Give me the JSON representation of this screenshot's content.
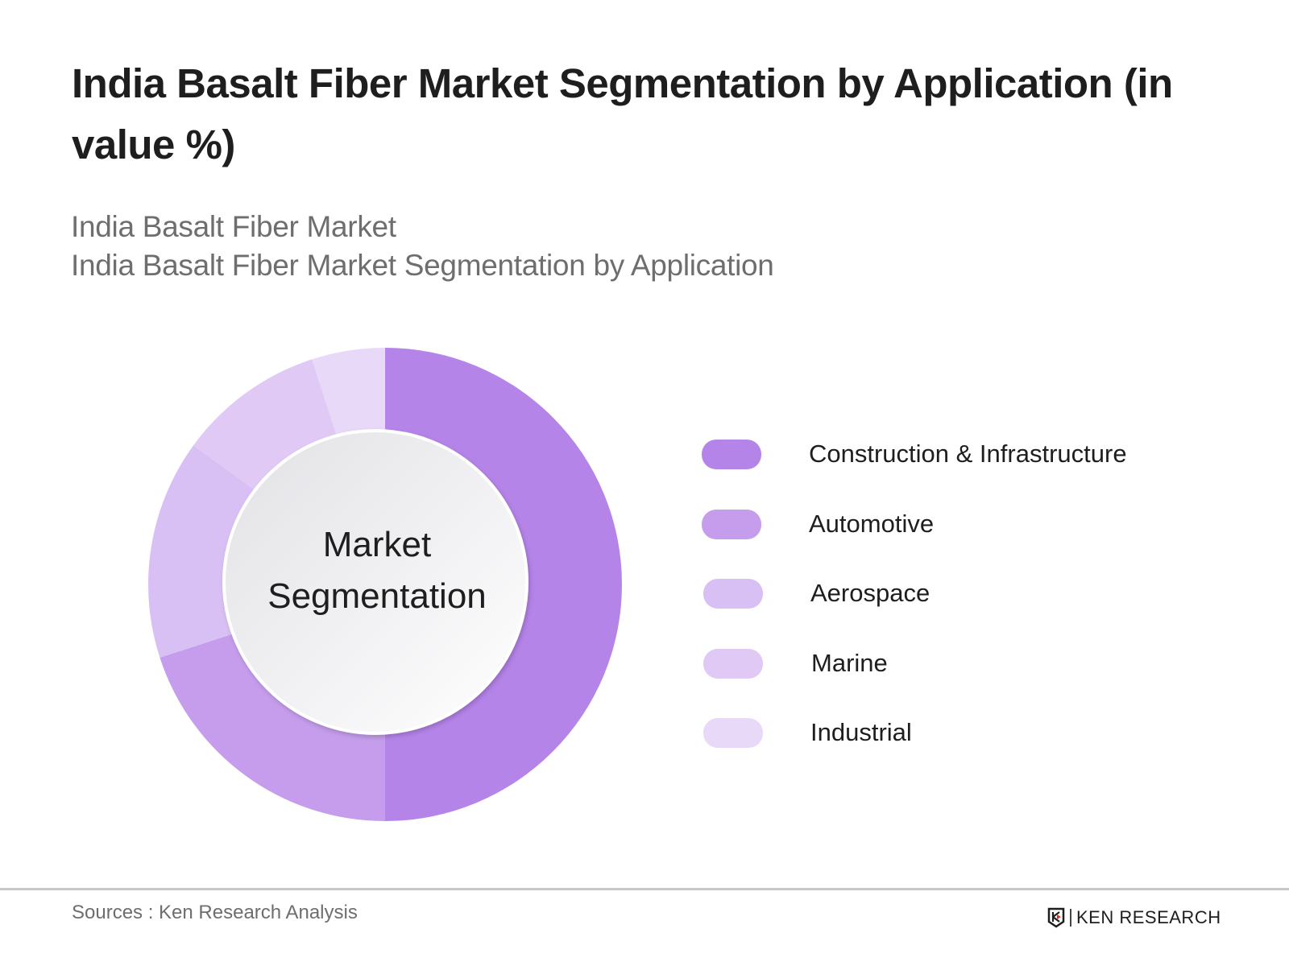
{
  "header": {
    "title": "India Basalt Fiber Market Segmentation by Application (in value %)",
    "subtitle_line1": "India Basalt Fiber Market",
    "subtitle_line2": "India Basalt Fiber Market Segmentation by Application"
  },
  "chart": {
    "center_label_line1": "Market",
    "center_label_line2": "Segmentation"
  },
  "legend": {
    "items": [
      {
        "label": "Construction & Infrastructure",
        "color": "#b584e9"
      },
      {
        "label": "Automotive",
        "color": "#c59dec"
      },
      {
        "label": "Aerospace",
        "color": "#d9c0f4"
      },
      {
        "label": "Marine",
        "color": "#e0caf5"
      },
      {
        "label": "Industrial",
        "color": "#e9d9f8"
      }
    ]
  },
  "footer": {
    "sources": "Sources : Ken Research Analysis",
    "brand": "KEN RESEARCH"
  },
  "chart_data": {
    "type": "pie",
    "subtype": "donut",
    "title": "India Basalt Fiber Market Segmentation by Application (in value %)",
    "subtitle": "India Basalt Fiber Market Segmentation by Application",
    "center_text": "Market Segmentation",
    "categories": [
      "Construction & Infrastructure",
      "Automotive",
      "Aerospace",
      "Marine",
      "Industrial"
    ],
    "values": [
      50,
      20,
      15,
      10,
      5
    ],
    "colors": [
      "#b584e9",
      "#c59dec",
      "#d9c0f4",
      "#e0caf5",
      "#e9d9f8"
    ],
    "unit": "%",
    "start_angle": "12 o'clock, clockwise",
    "legend_position": "right",
    "source": "Ken Research Analysis"
  }
}
